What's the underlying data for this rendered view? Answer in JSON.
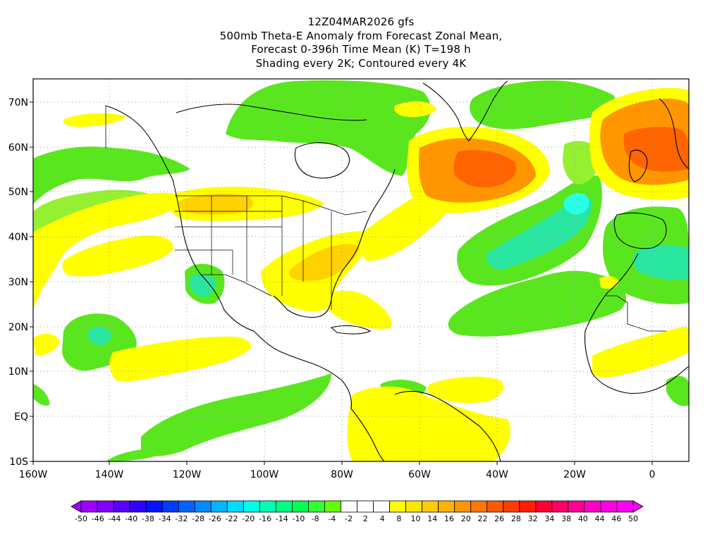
{
  "title": {
    "line1": "12Z04MAR2026 gfs",
    "line2": "500mb Theta-E Anomaly from Forecast Zonal Mean,",
    "line3": "Forecast 0-396h Time Mean (K) T=198 h",
    "line4": "Shading every 2K; Contoured every 4K"
  },
  "lat_labels": [
    "70N",
    "60N",
    "50N",
    "40N",
    "30N",
    "20N",
    "10N",
    "EQ",
    "10S"
  ],
  "lon_labels": [
    "160W",
    "140W",
    "120W",
    "100W",
    "80W",
    "60W",
    "40W",
    "20W",
    "0"
  ],
  "colorbar": {
    "labels": [
      "-50",
      "-46",
      "-44",
      "-40",
      "-38",
      "-34",
      "-32",
      "-28",
      "-26",
      "-22",
      "-20",
      "-16",
      "-14",
      "-10",
      "-8",
      "-4",
      "-2",
      "2",
      "4",
      "8",
      "10",
      "14",
      "16",
      "20",
      "22",
      "26",
      "28",
      "32",
      "34",
      "38",
      "40",
      "44",
      "46",
      "50"
    ],
    "colors": [
      "#a000ff",
      "#8200ff",
      "#5a00ff",
      "#3200ff",
      "#0014ff",
      "#003cff",
      "#0064ff",
      "#008cff",
      "#00b4ff",
      "#00dcff",
      "#00ffe6",
      "#00ffb4",
      "#00ff82",
      "#00ff50",
      "#32ff32",
      "#64ff00",
      "#ffffff",
      "#ffffff",
      "#ffffff",
      "#ffff00",
      "#ffe600",
      "#ffcc00",
      "#ffb400",
      "#ff9600",
      "#ff7800",
      "#ff5a00",
      "#ff3c00",
      "#ff1e00",
      "#ff0032",
      "#ff0064",
      "#ff0096",
      "#ff00c8",
      "#ff00e6",
      "#ff00ff"
    ]
  },
  "colors": {
    "green": "#5ae61e",
    "green_light": "#96f032",
    "cyan": "#28e6a0",
    "cyan_bright": "#28ffe6",
    "yellow": "#ffff00",
    "yellow_orange": "#ffd200",
    "orange": "#ff9600",
    "orange_red": "#ff6400"
  }
}
